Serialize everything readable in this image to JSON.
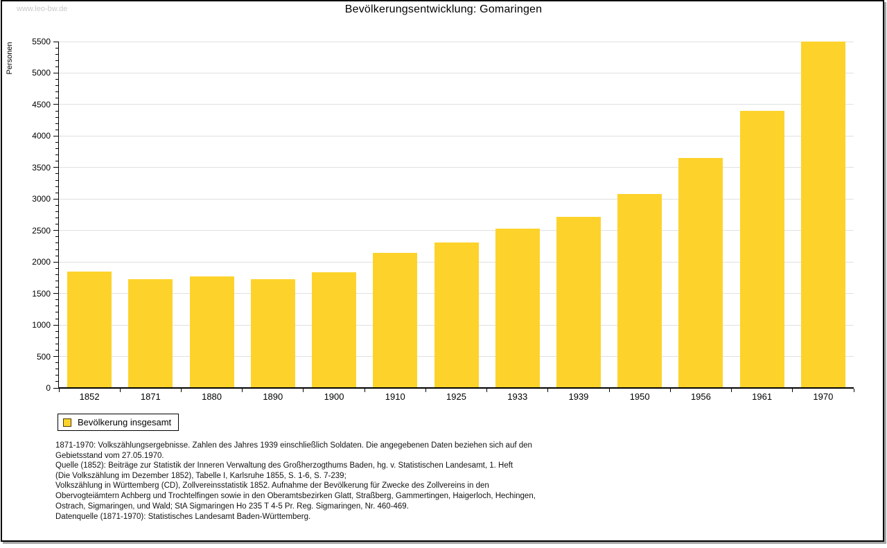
{
  "page": {
    "watermark": "www.leo-bw.de",
    "title": "Bevölkerungsentwicklung: Gomaringen"
  },
  "chart_data": {
    "type": "bar",
    "title": "Bevölkerungsentwicklung: Gomaringen",
    "categories": [
      "1852",
      "1871",
      "1880",
      "1890",
      "1900",
      "1910",
      "1925",
      "1933",
      "1939",
      "1950",
      "1956",
      "1961",
      "1970"
    ],
    "values": [
      1845,
      1725,
      1770,
      1725,
      1835,
      2150,
      2305,
      2525,
      2715,
      3075,
      3650,
      4395,
      5500
    ],
    "series_name": "Bevölkerung insgesamt",
    "xlabel": "",
    "ylabel": "Personen",
    "ylim": [
      0,
      5500
    ],
    "ytick_step": 500,
    "yminor_step": 100,
    "yticks": [
      0,
      500,
      1000,
      1500,
      2000,
      2500,
      3000,
      3500,
      4000,
      4500,
      5000,
      5500
    ],
    "grid": true,
    "bar_color": "#fdd32b",
    "grid_color": "#e0e0e0",
    "axis_color": "#000000",
    "legend": {
      "label": "Bevölkerung insgesamt",
      "position": "bottom-left"
    }
  },
  "footnotes": {
    "lines": [
      "1871-1970: Volkszählungsergebnisse. Zahlen des Jahres 1939 einschließlich Soldaten. Die angegebenen Daten beziehen sich auf den",
      "Gebietsstand vom 27.05.1970.",
      "Quelle (1852): Beiträge zur Statistik der Inneren Verwaltung des Großherzogthums Baden, hg. v. Statistischen Landesamt, 1. Heft",
      "(Die Volkszählung im Dezember 1852), Tabelle I, Karlsruhe 1855, S. 1-6, S. 7-239;",
      "Volkszählung in Württemberg (CD), Zollvereinsstatistik 1852. Aufnahme der Bevölkerung für Zwecke des Zollvereins in den",
      "Obervogteiämtern Achberg und Trochtelfingen sowie in den Oberamtsbezirken Glatt, Straßberg, Gammertingen, Haigerloch, Hechingen,",
      "Ostrach, Sigmaringen, und Wald; StA Sigmaringen Ho 235 T 4-5 Pr. Reg. Sigmaringen, Nr. 460-469."
    ],
    "datasource": "Datenquelle (1871-1970): Statistisches Landesamt Baden-Württemberg."
  }
}
